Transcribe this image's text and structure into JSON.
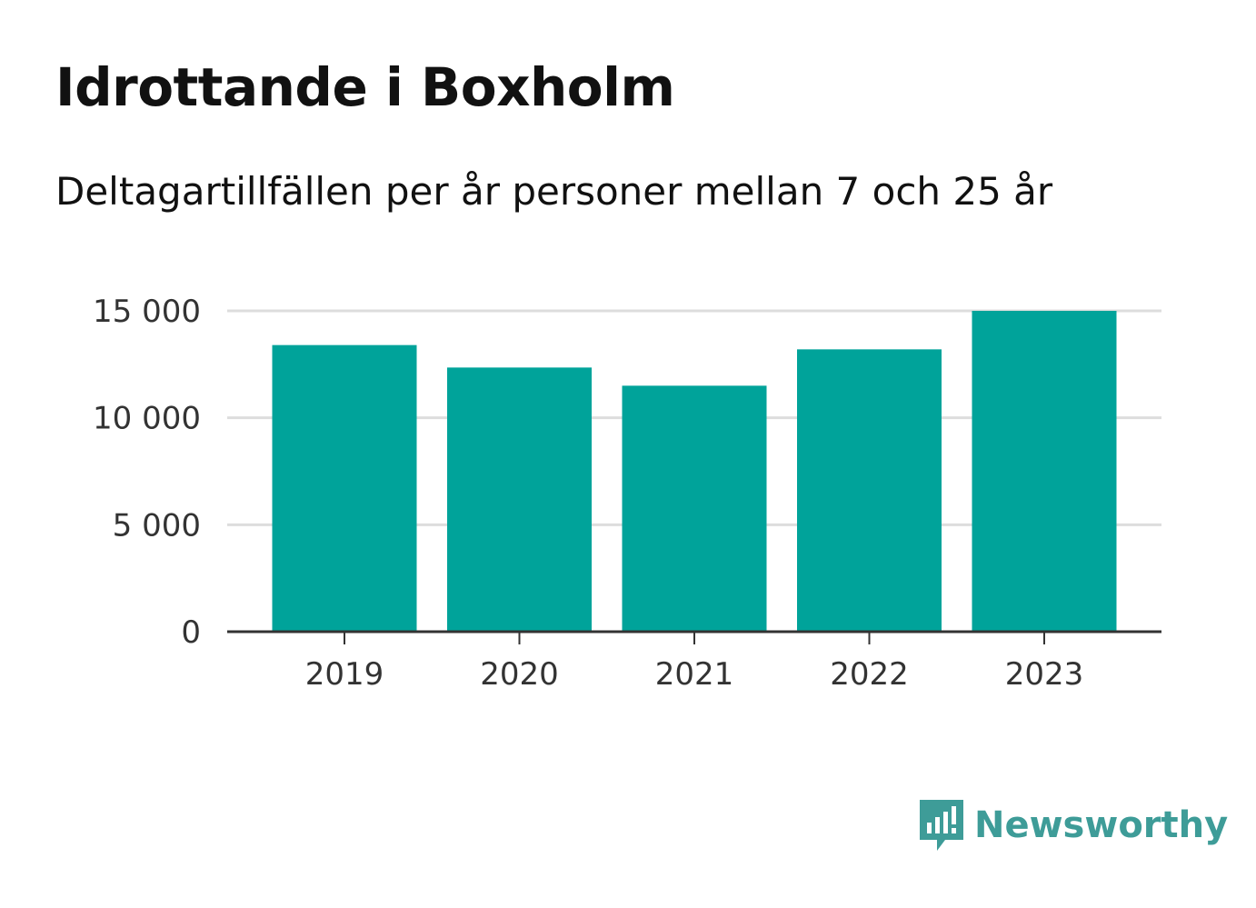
{
  "title": "Idrottande i Boxholm",
  "subtitle": "Deltagartillfällen per år personer mellan 7 och 25 år",
  "brand": {
    "name": "Newsworthy",
    "color": "#3e9c98",
    "icon": "newsworthy-logo-icon"
  },
  "colors": {
    "bar": "#00a39a",
    "grid": "#dddddd",
    "axis": "#333333"
  },
  "chart_data": {
    "type": "bar",
    "categories": [
      "2019",
      "2020",
      "2021",
      "2022",
      "2023"
    ],
    "values": [
      13400,
      12350,
      11500,
      13200,
      15000
    ],
    "ylim": [
      0,
      15000
    ],
    "yticks": [
      0,
      5000,
      10000,
      15000
    ],
    "ytick_labels": [
      "0",
      "5 000",
      "10 000",
      "15 000"
    ],
    "grid": true,
    "xlabel": "",
    "ylabel": ""
  }
}
